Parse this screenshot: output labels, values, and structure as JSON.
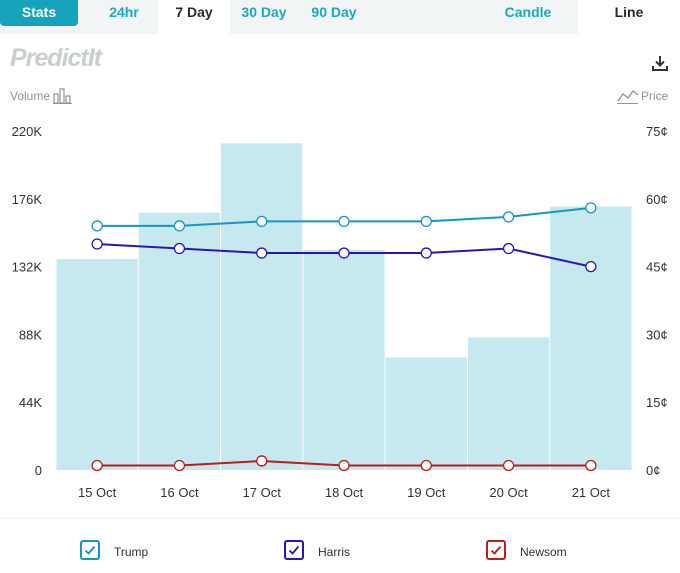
{
  "tabs": {
    "stats": "Stats",
    "h24": "24hr",
    "d7": "7 Day",
    "d30": "30 Day",
    "d90": "90 Day",
    "candle": "Candle",
    "line": "Line"
  },
  "header": {
    "logo": "PredictIt",
    "volume_label": "Volume",
    "price_label": "Price"
  },
  "chart_data": {
    "type": "bar+line",
    "categories": [
      "15 Oct",
      "16 Oct",
      "17 Oct",
      "18 Oct",
      "19 Oct",
      "20 Oct",
      "21 Oct"
    ],
    "volume": {
      "values": [
        137000,
        167000,
        212000,
        143000,
        73000,
        86000,
        171000
      ],
      "ylim": [
        0,
        220000
      ],
      "ticks": [
        0,
        44000,
        88000,
        132000,
        176000,
        220000
      ],
      "tick_labels": [
        "0",
        "44K",
        "88K",
        "132K",
        "176K",
        "220K"
      ],
      "color": "#c6e9f0"
    },
    "price": {
      "ylim": [
        0,
        75
      ],
      "ticks": [
        0,
        15,
        30,
        45,
        60,
        75
      ],
      "tick_labels": [
        "0¢",
        "15¢",
        "30¢",
        "45¢",
        "60¢",
        "75¢"
      ],
      "series": [
        {
          "name": "Trump",
          "values": [
            54,
            54,
            55,
            55,
            55,
            56,
            58
          ],
          "color": "#1795c4"
        },
        {
          "name": "Harris",
          "values": [
            50,
            49,
            48,
            48,
            48,
            49,
            45
          ],
          "color": "#2a16b8"
        },
        {
          "name": "Newsom",
          "values": [
            1,
            1,
            2,
            1,
            1,
            1,
            1
          ],
          "color": "#c01a1a"
        }
      ]
    },
    "grid": false,
    "legend_position": "bottom"
  },
  "legend": [
    {
      "label": "Trump",
      "color": "#1795c4"
    },
    {
      "label": "Harris",
      "color": "#2a16b8"
    },
    {
      "label": "Newsom",
      "color": "#c01a1a"
    }
  ],
  "icons": {
    "download": "download-icon",
    "volume": "bar-chart-icon",
    "price": "line-chart-icon",
    "check": "checkmark-icon"
  }
}
